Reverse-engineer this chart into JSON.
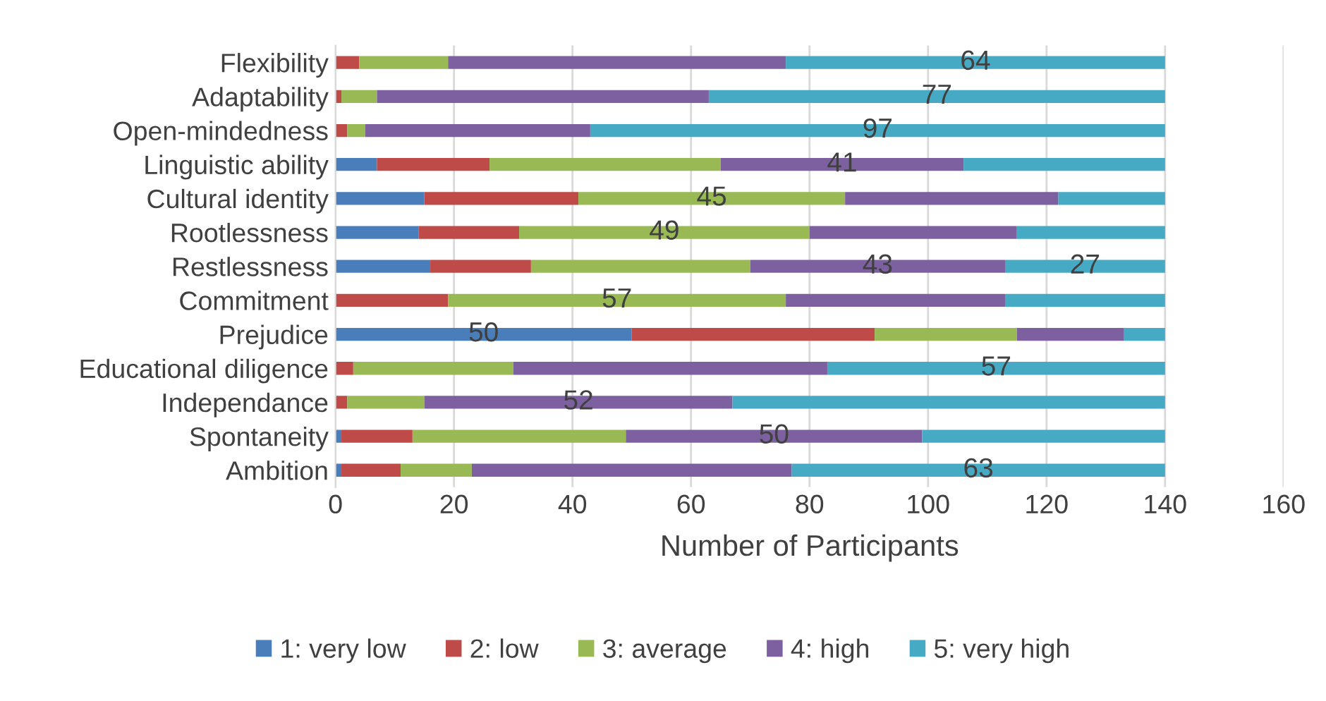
{
  "chart_data": {
    "type": "bar",
    "orientation": "horizontal",
    "stacked": true,
    "xlabel": "Number of Participants",
    "categories": [
      "Flexibility",
      "Adaptability",
      "Open-mindedness",
      "Linguistic ability",
      "Cultural identity",
      "Rootlessness",
      "Restlessness",
      "Commitment",
      "Prejudice",
      "Educational diligence",
      "Independance",
      "Spontaneity",
      "Ambition"
    ],
    "series": [
      {
        "name": "1: very low",
        "color": "#4a7ebb",
        "values": [
          0,
          0,
          0,
          7,
          15,
          14,
          16,
          0,
          50,
          0,
          0,
          1,
          1
        ],
        "value_labels": [
          null,
          null,
          null,
          null,
          null,
          null,
          null,
          null,
          "50",
          null,
          null,
          null,
          null
        ]
      },
      {
        "name": "2: low",
        "color": "#be4b48",
        "values": [
          4,
          1,
          2,
          19,
          26,
          17,
          17,
          19,
          41,
          3,
          2,
          12,
          10
        ],
        "value_labels": [
          null,
          null,
          null,
          null,
          null,
          null,
          null,
          null,
          null,
          null,
          null,
          null,
          null
        ]
      },
      {
        "name": "3: average",
        "color": "#98b954",
        "values": [
          15,
          6,
          3,
          39,
          45,
          49,
          37,
          57,
          24,
          27,
          13,
          36,
          12
        ],
        "value_labels": [
          null,
          null,
          null,
          null,
          "45",
          "49",
          null,
          "57",
          null,
          null,
          null,
          null,
          null
        ]
      },
      {
        "name": "4: high",
        "color": "#7d60a0",
        "values": [
          57,
          56,
          38,
          41,
          36,
          35,
          43,
          37,
          18,
          53,
          52,
          50,
          54
        ],
        "value_labels": [
          null,
          null,
          null,
          "41",
          null,
          null,
          "43",
          null,
          null,
          null,
          "52",
          "50",
          null
        ]
      },
      {
        "name": "5: very high",
        "color": "#46aac5",
        "values": [
          64,
          77,
          97,
          34,
          18,
          25,
          27,
          27,
          7,
          57,
          73,
          41,
          63
        ],
        "value_labels": [
          "64",
          "77",
          "97",
          null,
          null,
          null,
          "27",
          null,
          null,
          "57",
          null,
          null,
          "63"
        ]
      }
    ],
    "xlim": [
      0,
      160
    ],
    "xticks": [
      0,
      20,
      40,
      60,
      80,
      100,
      120,
      140,
      160
    ],
    "grid": "x",
    "legend": "bottom"
  }
}
